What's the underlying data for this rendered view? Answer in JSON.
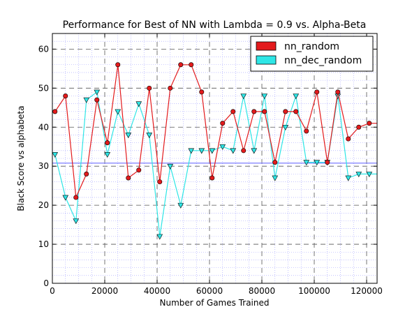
{
  "chart_data": {
    "type": "line",
    "title": "Performance for Best of NN with Lambda = 0.9 vs. Alpha-Beta",
    "xlabel": "Number of Games Trained",
    "ylabel": "Black Score vs alphabeta",
    "xlim": [
      0,
      124000
    ],
    "ylim": [
      0,
      64
    ],
    "xticks": [
      0,
      20000,
      40000,
      60000,
      80000,
      100000,
      120000
    ],
    "yticks": [
      0,
      10,
      20,
      30,
      40,
      50,
      60
    ],
    "grid": true,
    "legend_position": "top-right",
    "reference_line": {
      "y": 30.8,
      "color": "#7b7bff"
    },
    "series": [
      {
        "name": "nn_random",
        "color": "#e31a1c",
        "marker": "circle",
        "x": [
          1000,
          5000,
          9000,
          13000,
          17000,
          21000,
          25000,
          29000,
          33000,
          37000,
          41000,
          45000,
          49000,
          53000,
          57000,
          61000,
          65000,
          69000,
          73000,
          77000,
          81000,
          85000,
          89000,
          93000,
          97000,
          101000,
          105000,
          109000,
          113000,
          117000,
          121000,
          124000
        ],
        "y": [
          44,
          48,
          22,
          28,
          47,
          36,
          56,
          27,
          29,
          50,
          26,
          50,
          56,
          56,
          49,
          27,
          41,
          44,
          34,
          44,
          44,
          31,
          44,
          44,
          39,
          49,
          31,
          49,
          37,
          40,
          41,
          41
        ]
      },
      {
        "name": "nn_dec_random",
        "color": "#2ee6e6",
        "marker": "triangle-down",
        "x": [
          1000,
          5000,
          9000,
          13000,
          17000,
          21000,
          25000,
          29000,
          33000,
          37000,
          41000,
          45000,
          49000,
          53000,
          57000,
          61000,
          65000,
          69000,
          73000,
          77000,
          81000,
          85000,
          89000,
          93000,
          97000,
          101000,
          105000,
          109000,
          113000,
          117000,
          121000,
          124000
        ],
        "y": [
          33,
          22,
          16,
          47,
          49,
          33,
          44,
          38,
          46,
          38,
          12,
          30,
          20,
          34,
          34,
          34,
          35,
          34,
          48,
          34,
          48,
          27,
          40,
          48,
          31,
          31,
          31,
          48,
          27,
          28,
          28,
          28
        ]
      }
    ]
  }
}
